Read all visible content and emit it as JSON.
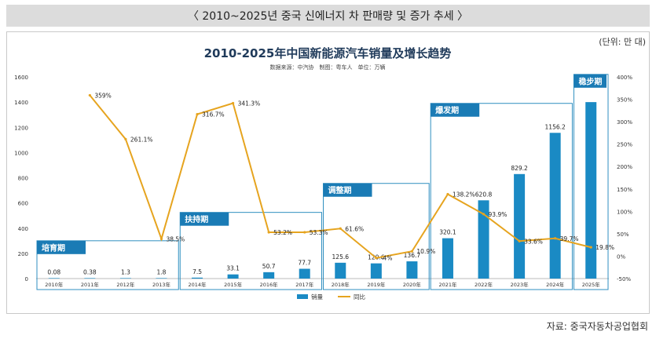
{
  "header": {
    "title": "〈 2010~2025년 중국 신에너지 차 판매량 및 증가 추세 〉"
  },
  "unit_note": "(단위: 만 대)",
  "source_note": "자료: 중국자동차공업협회",
  "colors": {
    "bar": "#1a8ac4",
    "line": "#e6a41f",
    "phase_border": "#2f8fc0",
    "phase_label_bg": "#1a7bb5"
  },
  "chart_data": {
    "type": "bar",
    "title": "2010-2025年中国新能源汽车销量及增长趋势",
    "subtitle": "数据来源：中汽协　制图：粤车人　单位：万辆",
    "categories": [
      "2010年",
      "2011年",
      "2012年",
      "2013年",
      "2014年",
      "2015年",
      "2016年",
      "2017年",
      "2018年",
      "2019年",
      "2020年",
      "2021年",
      "2022年",
      "2023年",
      "2024年",
      "2025年"
    ],
    "series": [
      {
        "name": "销量",
        "axis": "left",
        "values": [
          0.08,
          0.38,
          1.3,
          1.8,
          7.5,
          33.1,
          50.7,
          77.7,
          125.6,
          120.6,
          136.7,
          320.1,
          620.8,
          829.2,
          1156.2,
          1400
        ],
        "labels": [
          "0.08",
          "0.38",
          "1.3",
          "1.8",
          "7.5",
          "33.1",
          "50.7",
          "77.7",
          "125.6",
          "120.6",
          "136.7",
          "320.1",
          "620.8",
          "829.2",
          "1156.2",
          ""
        ]
      },
      {
        "name": "同比",
        "axis": "right",
        "values": [
          null,
          359,
          261.1,
          38.5,
          316.7,
          341.3,
          53.2,
          53.3,
          61.6,
          -4,
          10.9,
          138.2,
          93.9,
          33.6,
          39.7,
          19.8
        ],
        "labels": [
          "",
          "359%",
          "261.1%",
          "38.5%",
          "316.7%",
          "341.3%",
          "53.2%",
          "53.3%",
          "61.6%",
          "-4%",
          "10.9%",
          "138.2%",
          "93.9%",
          "33.6%",
          "39.7%",
          "19.8%"
        ]
      }
    ],
    "y_left": {
      "min": 0,
      "max": 1600,
      "ticks": [
        "0",
        "200",
        "400",
        "600",
        "800",
        "1000",
        "1200",
        "1400",
        "1600"
      ]
    },
    "y_right": {
      "min": -50,
      "max": 400,
      "ticks": [
        "-50%",
        "0%",
        "50%",
        "100%",
        "150%",
        "200%",
        "250%",
        "300%",
        "350%",
        "400%"
      ]
    },
    "phases": [
      {
        "label": "培育期",
        "start": 0,
        "end": 3
      },
      {
        "label": "扶持期",
        "start": 4,
        "end": 7
      },
      {
        "label": "调整期",
        "start": 8,
        "end": 10
      },
      {
        "label": "爆发期",
        "start": 11,
        "end": 14
      },
      {
        "label": "稳步期",
        "start": 15,
        "end": 15
      }
    ],
    "legend": {
      "position": "bottom"
    }
  }
}
